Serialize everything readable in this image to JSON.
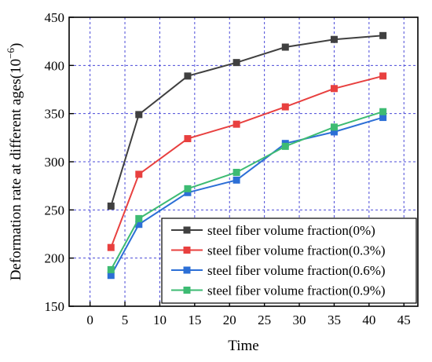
{
  "chart_data": {
    "type": "line",
    "xlabel": "Time",
    "ylabel_main": "Deformation rate at different ages(10",
    "ylabel_sup": "−6",
    "ylabel_close": ")",
    "xlim": [
      -3,
      47
    ],
    "ylim": [
      150,
      450
    ],
    "x_ticks": [
      0,
      5,
      10,
      15,
      20,
      25,
      30,
      35,
      40,
      45
    ],
    "y_ticks": [
      150,
      200,
      250,
      300,
      350,
      400,
      450
    ],
    "grid": true,
    "legend_position": "bottom-right",
    "x": [
      3,
      7,
      14,
      21,
      28,
      35,
      42
    ],
    "series": [
      {
        "name": "steel fiber volume fraction(0%)",
        "color": "#404040",
        "values": [
          254,
          349,
          389,
          403,
          419,
          427,
          431
        ]
      },
      {
        "name": "steel fiber volume fraction(0.3%)",
        "color": "#e8403f",
        "values": [
          211,
          287,
          324,
          339,
          357,
          376,
          389
        ]
      },
      {
        "name": "steel fiber volume fraction(0.6%)",
        "color": "#2c6fd6",
        "values": [
          182,
          235,
          268,
          281,
          319,
          331,
          346
        ]
      },
      {
        "name": "steel fiber volume fraction(0.9%)",
        "color": "#3dbb73",
        "values": [
          188,
          241,
          272,
          289,
          316,
          336,
          352
        ]
      }
    ]
  }
}
